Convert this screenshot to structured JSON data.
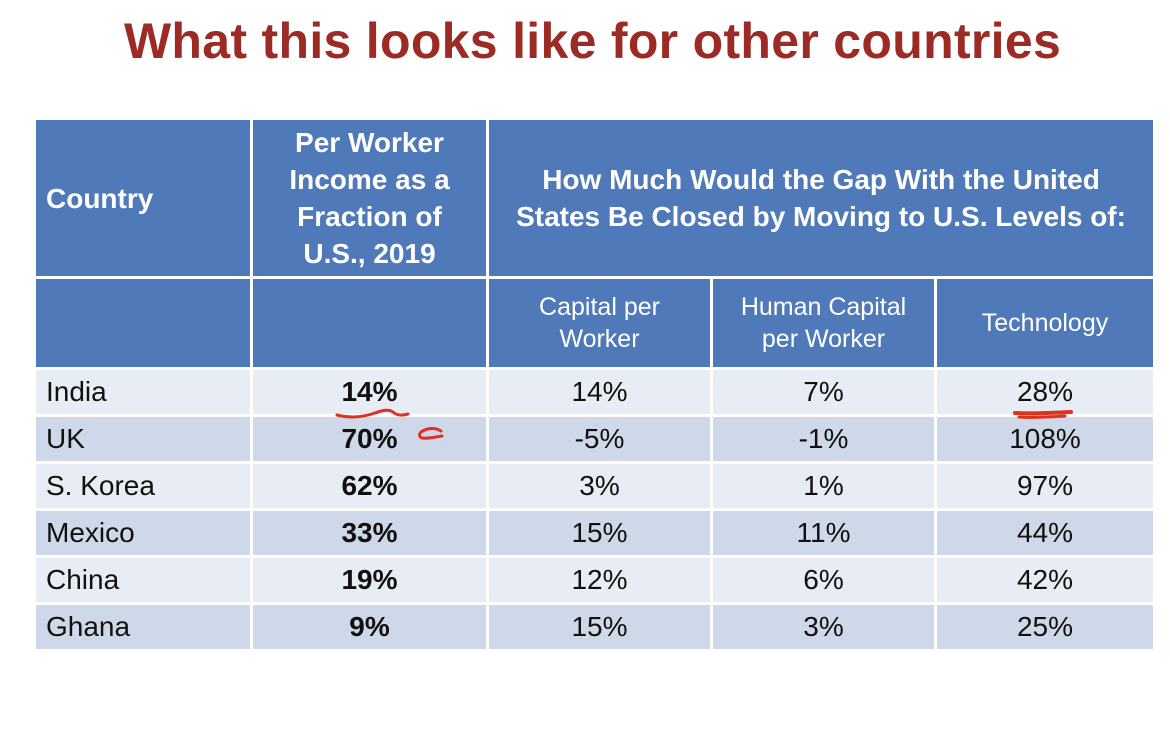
{
  "title": "What this looks like for other countries",
  "table": {
    "header_country": "Country",
    "header_fraction": "Per Worker Income as a Fraction of U.S., 2019",
    "header_gap": "How Much Would the Gap With the United States Be Closed by Moving to U.S. Levels of:",
    "subheaders": [
      "Capital per Worker",
      "Human Capital per Worker",
      "Technology"
    ],
    "rows": [
      {
        "country": "India",
        "fraction": "14%",
        "capital": "14%",
        "human_capital": "7%",
        "technology": "28%"
      },
      {
        "country": "UK",
        "fraction": "70%",
        "capital": "-5%",
        "human_capital": "-1%",
        "technology": "108%"
      },
      {
        "country": "S. Korea",
        "fraction": "62%",
        "capital": "3%",
        "human_capital": "1%",
        "technology": "97%"
      },
      {
        "country": "Mexico",
        "fraction": "33%",
        "capital": "15%",
        "human_capital": "11%",
        "technology": "44%"
      },
      {
        "country": "China",
        "fraction": "19%",
        "capital": "12%",
        "human_capital": "6%",
        "technology": "42%"
      },
      {
        "country": "Ghana",
        "fraction": "9%",
        "capital": "15%",
        "human_capital": "3%",
        "technology": "25%"
      }
    ]
  },
  "colors": {
    "title": "#9b2b24",
    "header_bg": "#4f79b8",
    "row_light": "#e8ecf4",
    "row_dark": "#ced8e8",
    "annotation": "#e0301e"
  }
}
